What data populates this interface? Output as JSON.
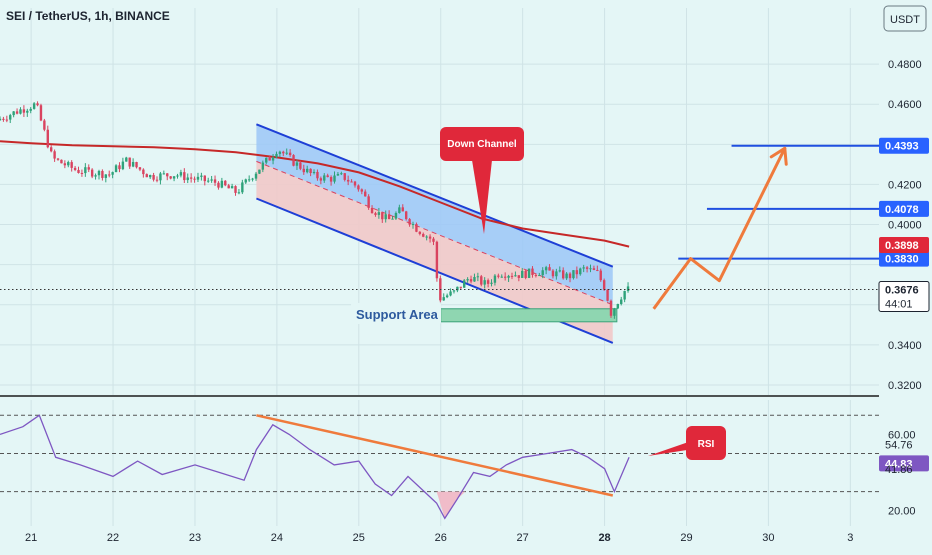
{
  "header": {
    "symbol": "SEI / TetherUS, 1h, BINANCE",
    "currency": "USDT"
  },
  "colors": {
    "background": "#e4f6f6",
    "candle_up": "#2ea27a",
    "candle_down": "#d9435f",
    "ma_line": "#c62828",
    "channel_line": "#1e3fd6",
    "channel_fill_upper": "#9cc7f7",
    "channel_fill_lower": "#f1c9c9",
    "support_zone": "#8fd6b1",
    "forecast_arrow": "#ef7a3c",
    "rsi_line": "#7e57c2",
    "rsi_trendline": "#ef7a3c",
    "target_line": "#1f4fe0",
    "label_red": "#e0283a",
    "label_blue": "#2962ff"
  },
  "chart_data": [
    {
      "type": "candlestick",
      "title": "SEI / TetherUS, 1h, BINANCE",
      "ylabel": "USDT",
      "ylim": [
        0.315,
        0.498
      ],
      "y_ticks": [
        "0.4800",
        "0.4600",
        "0.4200",
        "0.4000",
        "0.3400",
        "0.3200"
      ],
      "x_ticks": [
        "21",
        "22",
        "23",
        "24",
        "25",
        "26",
        "27",
        "28",
        "29",
        "30",
        "3"
      ],
      "x_tick_days": [
        21,
        22,
        23,
        24,
        25,
        26,
        27,
        28,
        29,
        30,
        31
      ],
      "xlim_days": [
        20.62,
        31.35
      ],
      "price_path": [
        [
          20.62,
          0.452
        ],
        [
          20.9,
          0.457
        ],
        [
          21.1,
          0.46
        ],
        [
          21.3,
          0.433
        ],
        [
          21.6,
          0.427
        ],
        [
          22.0,
          0.425
        ],
        [
          22.2,
          0.432
        ],
        [
          22.5,
          0.424
        ],
        [
          22.8,
          0.425
        ],
        [
          23.0,
          0.423
        ],
        [
          23.3,
          0.421
        ],
        [
          23.55,
          0.416
        ],
        [
          23.75,
          0.425
        ],
        [
          23.95,
          0.433
        ],
        [
          24.05,
          0.438
        ],
        [
          24.25,
          0.431
        ],
        [
          24.5,
          0.424
        ],
        [
          24.7,
          0.423
        ],
        [
          24.85,
          0.424
        ],
        [
          25.05,
          0.418
        ],
        [
          25.2,
          0.408
        ],
        [
          25.4,
          0.402
        ],
        [
          25.55,
          0.407
        ],
        [
          25.75,
          0.398
        ],
        [
          25.95,
          0.392
        ],
        [
          26.02,
          0.363
        ],
        [
          26.2,
          0.366
        ],
        [
          26.4,
          0.374
        ],
        [
          26.6,
          0.37
        ],
        [
          26.75,
          0.376
        ],
        [
          27.0,
          0.375
        ],
        [
          27.3,
          0.377
        ],
        [
          27.6,
          0.374
        ],
        [
          27.8,
          0.378
        ],
        [
          27.95,
          0.376
        ],
        [
          28.05,
          0.368
        ],
        [
          28.12,
          0.356
        ],
        [
          28.22,
          0.363
        ],
        [
          28.3,
          0.3676
        ]
      ],
      "moving_average": [
        [
          20.62,
          0.4415
        ],
        [
          21.0,
          0.4405
        ],
        [
          21.5,
          0.4395
        ],
        [
          22.0,
          0.439
        ],
        [
          22.5,
          0.4385
        ],
        [
          23.0,
          0.4375
        ],
        [
          23.5,
          0.436
        ],
        [
          24.0,
          0.4335
        ],
        [
          24.5,
          0.4305
        ],
        [
          25.0,
          0.426
        ],
        [
          25.5,
          0.419
        ],
        [
          26.0,
          0.411
        ],
        [
          26.5,
          0.403
        ],
        [
          27.0,
          0.398
        ],
        [
          27.5,
          0.395
        ],
        [
          28.0,
          0.392
        ],
        [
          28.3,
          0.389
        ]
      ],
      "channel": {
        "upper": [
          [
            23.75,
            0.45
          ],
          [
            28.1,
            0.379
          ]
        ],
        "lower": [
          [
            23.75,
            0.413
          ],
          [
            28.1,
            0.341
          ]
        ],
        "midline": [
          [
            23.75,
            0.4315
          ],
          [
            28.1,
            0.36
          ]
        ]
      },
      "support_area": {
        "label": "Support Area",
        "x": [
          26.0,
          28.15
        ],
        "y": [
          0.3515,
          0.358
        ]
      },
      "forecast_path": [
        [
          28.6,
          0.358
        ],
        [
          29.05,
          0.383
        ],
        [
          29.4,
          0.372
        ],
        [
          30.2,
          0.438
        ]
      ],
      "targets": [
        {
          "value": 0.4393,
          "label": "0.4393",
          "x_start": 29.55
        },
        {
          "value": 0.4078,
          "label": "0.4078",
          "x_start": 29.25
        },
        {
          "value": 0.383,
          "label": "0.3830",
          "x_start": 28.9
        }
      ],
      "price_labels": [
        {
          "value": 0.3898,
          "label": "0.3898",
          "style": "red"
        },
        {
          "value": 0.3676,
          "label": "0.3676",
          "sub": "44:01",
          "style": "white"
        }
      ],
      "annotations": [
        {
          "text": "Down Channel",
          "x": 26.3,
          "y": 0.45,
          "pointer": [
            26.35,
            0.384
          ]
        }
      ]
    },
    {
      "type": "line",
      "title": "RSI",
      "ylim": [
        12,
        78
      ],
      "y_ticks": [
        "60.00",
        "20.00"
      ],
      "value_labels": [
        "54.76",
        "44.83",
        "41.86"
      ],
      "bands": [
        70,
        50,
        30
      ],
      "series": [
        {
          "values": [
            [
              20.62,
              60
            ],
            [
              20.9,
              64
            ],
            [
              21.1,
              70
            ],
            [
              21.3,
              48
            ],
            [
              21.6,
              44
            ],
            [
              22.0,
              38
            ],
            [
              22.3,
              46
            ],
            [
              22.6,
              39
            ],
            [
              23.0,
              44
            ],
            [
              23.3,
              40
            ],
            [
              23.6,
              36
            ],
            [
              23.75,
              52
            ],
            [
              23.95,
              65
            ],
            [
              24.15,
              60
            ],
            [
              24.4,
              52
            ],
            [
              24.7,
              44
            ],
            [
              25.0,
              46
            ],
            [
              25.2,
              34
            ],
            [
              25.4,
              28
            ],
            [
              25.6,
              38
            ],
            [
              25.8,
              30
            ],
            [
              25.95,
              24
            ],
            [
              26.05,
              16
            ],
            [
              26.2,
              26
            ],
            [
              26.4,
              40
            ],
            [
              26.6,
              38
            ],
            [
              26.8,
              44
            ],
            [
              27.0,
              48
            ],
            [
              27.3,
              50
            ],
            [
              27.6,
              52
            ],
            [
              27.8,
              48
            ],
            [
              28.0,
              42
            ],
            [
              28.12,
              30
            ],
            [
              28.3,
              48
            ]
          ]
        }
      ],
      "trendline": [
        [
          23.75,
          70
        ],
        [
          28.1,
          28
        ]
      ],
      "annotations": [
        {
          "text": "RSI",
          "x": 28.95,
          "y": 58
        }
      ]
    }
  ]
}
